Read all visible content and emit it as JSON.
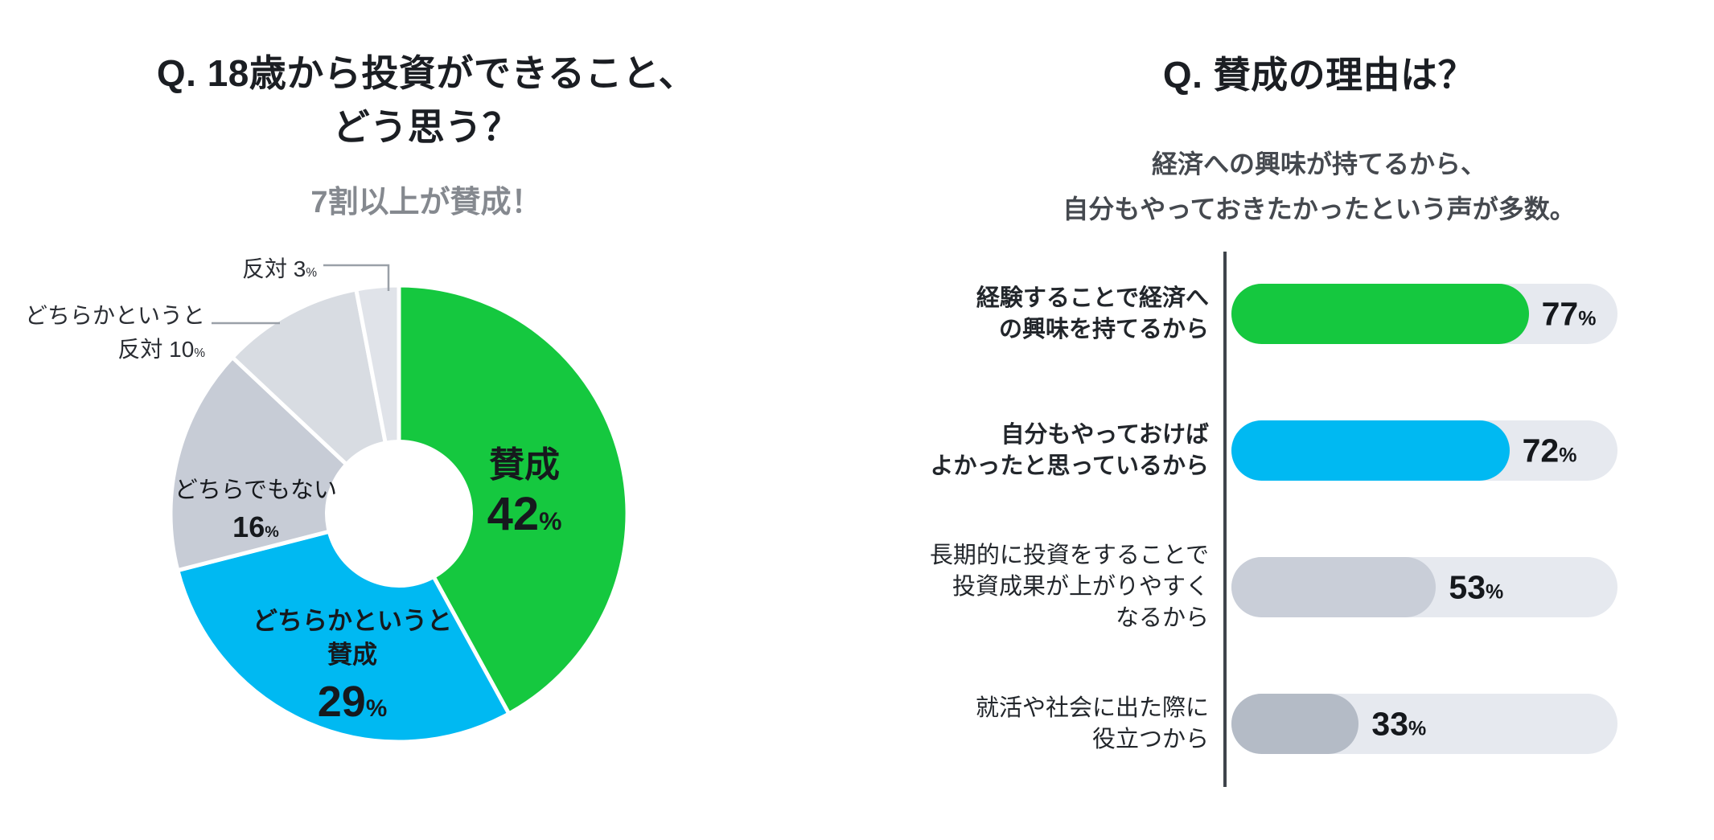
{
  "page": {
    "background": "#ffffff"
  },
  "units": {
    "percent": "%"
  },
  "left_panel": {
    "title": "Q. 18歳から投資ができること、\nどう思う？",
    "subtitle": "7割以上が賛成！"
  },
  "right_panel": {
    "title": "Q. 賛成の理由は？",
    "subtitle": "経済への興味が持てるから、\n自分もやっておきたかったという声が多数。"
  },
  "chart_data": [
    {
      "type": "pie",
      "title": "Q. 18歳から投資ができること、どう思う？",
      "subtitle": "7割以上が賛成！",
      "donut": true,
      "start_angle_deg": 0,
      "direction": "clockwise",
      "slices": [
        {
          "label": "賛成",
          "label_display": "賛成",
          "value": 42,
          "color": "#15c83f",
          "label_position": "inside"
        },
        {
          "label": "どちらかというと賛成",
          "label_display": "どちらかというと\n賛成",
          "value": 29,
          "color": "#00b9f2",
          "label_position": "inside"
        },
        {
          "label": "どちらでもない",
          "label_display": "どちらでもない",
          "value": 16,
          "color": "#c7ccd6",
          "label_position": "inside"
        },
        {
          "label": "どちらかというと反対",
          "label_display": "どちらかというと\n反対",
          "value": 10,
          "color": "#d8dce2",
          "label_position": "outside"
        },
        {
          "label": "反対",
          "label_display": "反対",
          "value": 3,
          "color": "#e0e3e9",
          "label_position": "outside"
        }
      ]
    },
    {
      "type": "bar",
      "orientation": "horizontal",
      "title": "Q. 賛成の理由は？",
      "subtitle": "経済への興味が持てるから、自分もやっておきたかったという声が多数。",
      "xlim": [
        0,
        100
      ],
      "track_color": "#e6e9ef",
      "rows": [
        {
          "label": "経験することで経済へ\nの興味を持てるから",
          "value": 77,
          "color": "#15c83f",
          "bold": true
        },
        {
          "label": "自分もやっておけば\nよかったと思っているから",
          "value": 72,
          "color": "#00b9f2",
          "bold": true
        },
        {
          "label": "長期的に投資をすることで\n投資成果が上がりやすく\nなるから",
          "value": 53,
          "color": "#c9ced8",
          "bold": false
        },
        {
          "label": "就活や社会に出た際に\n役立つから",
          "value": 33,
          "color": "#b4bbc6",
          "bold": false
        }
      ]
    }
  ]
}
